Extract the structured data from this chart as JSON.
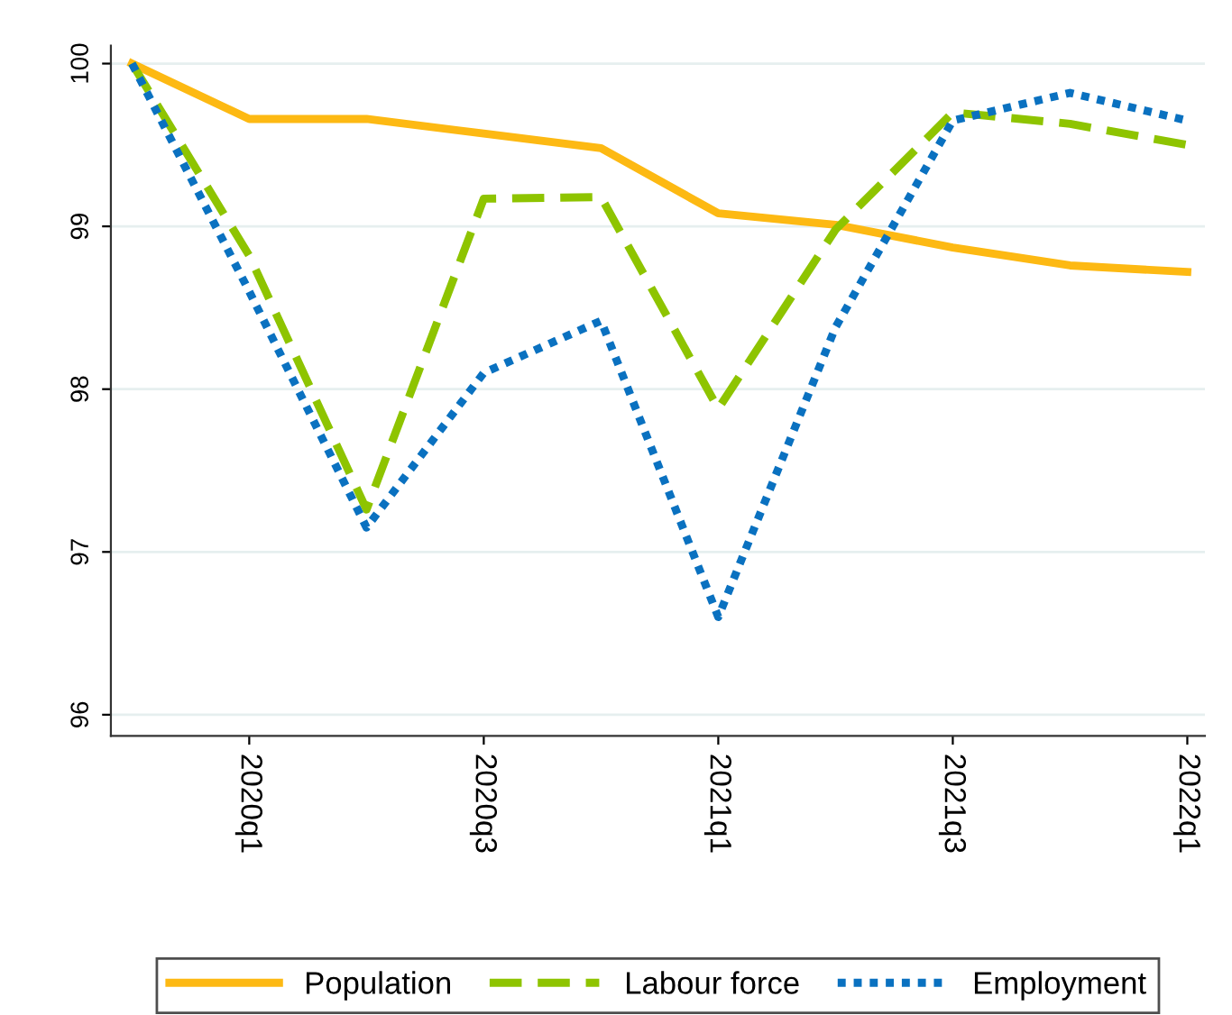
{
  "chart_data": {
    "type": "line",
    "categories": [
      null,
      "2020q1",
      null,
      "2020q3",
      null,
      "2021q1",
      null,
      "2021q3",
      null,
      "2022q1"
    ],
    "series": [
      {
        "name": "Population",
        "color": "#fdb913",
        "line_style": "solid",
        "values": [
          100,
          99.66,
          99.66,
          99.57,
          99.48,
          99.08,
          99.01,
          98.87,
          98.76,
          98.72
        ]
      },
      {
        "name": "Labour force",
        "color": "#8ec400",
        "line_style": "dashed",
        "values": [
          100,
          98.82,
          97.26,
          99.17,
          99.18,
          97.88,
          98.98,
          99.7,
          99.63,
          99.5
        ]
      },
      {
        "name": "Employment",
        "color": "#0a71c0",
        "line_style": "dotted",
        "values": [
          100,
          98.6,
          97.15,
          98.1,
          98.42,
          96.6,
          98.38,
          99.65,
          99.82,
          99.65
        ]
      }
    ],
    "ylim": [
      95.87,
      100.11
    ],
    "yticks": [
      96,
      97,
      98,
      99,
      100
    ],
    "grid": "y",
    "legend": "bottom",
    "marker": "none"
  }
}
